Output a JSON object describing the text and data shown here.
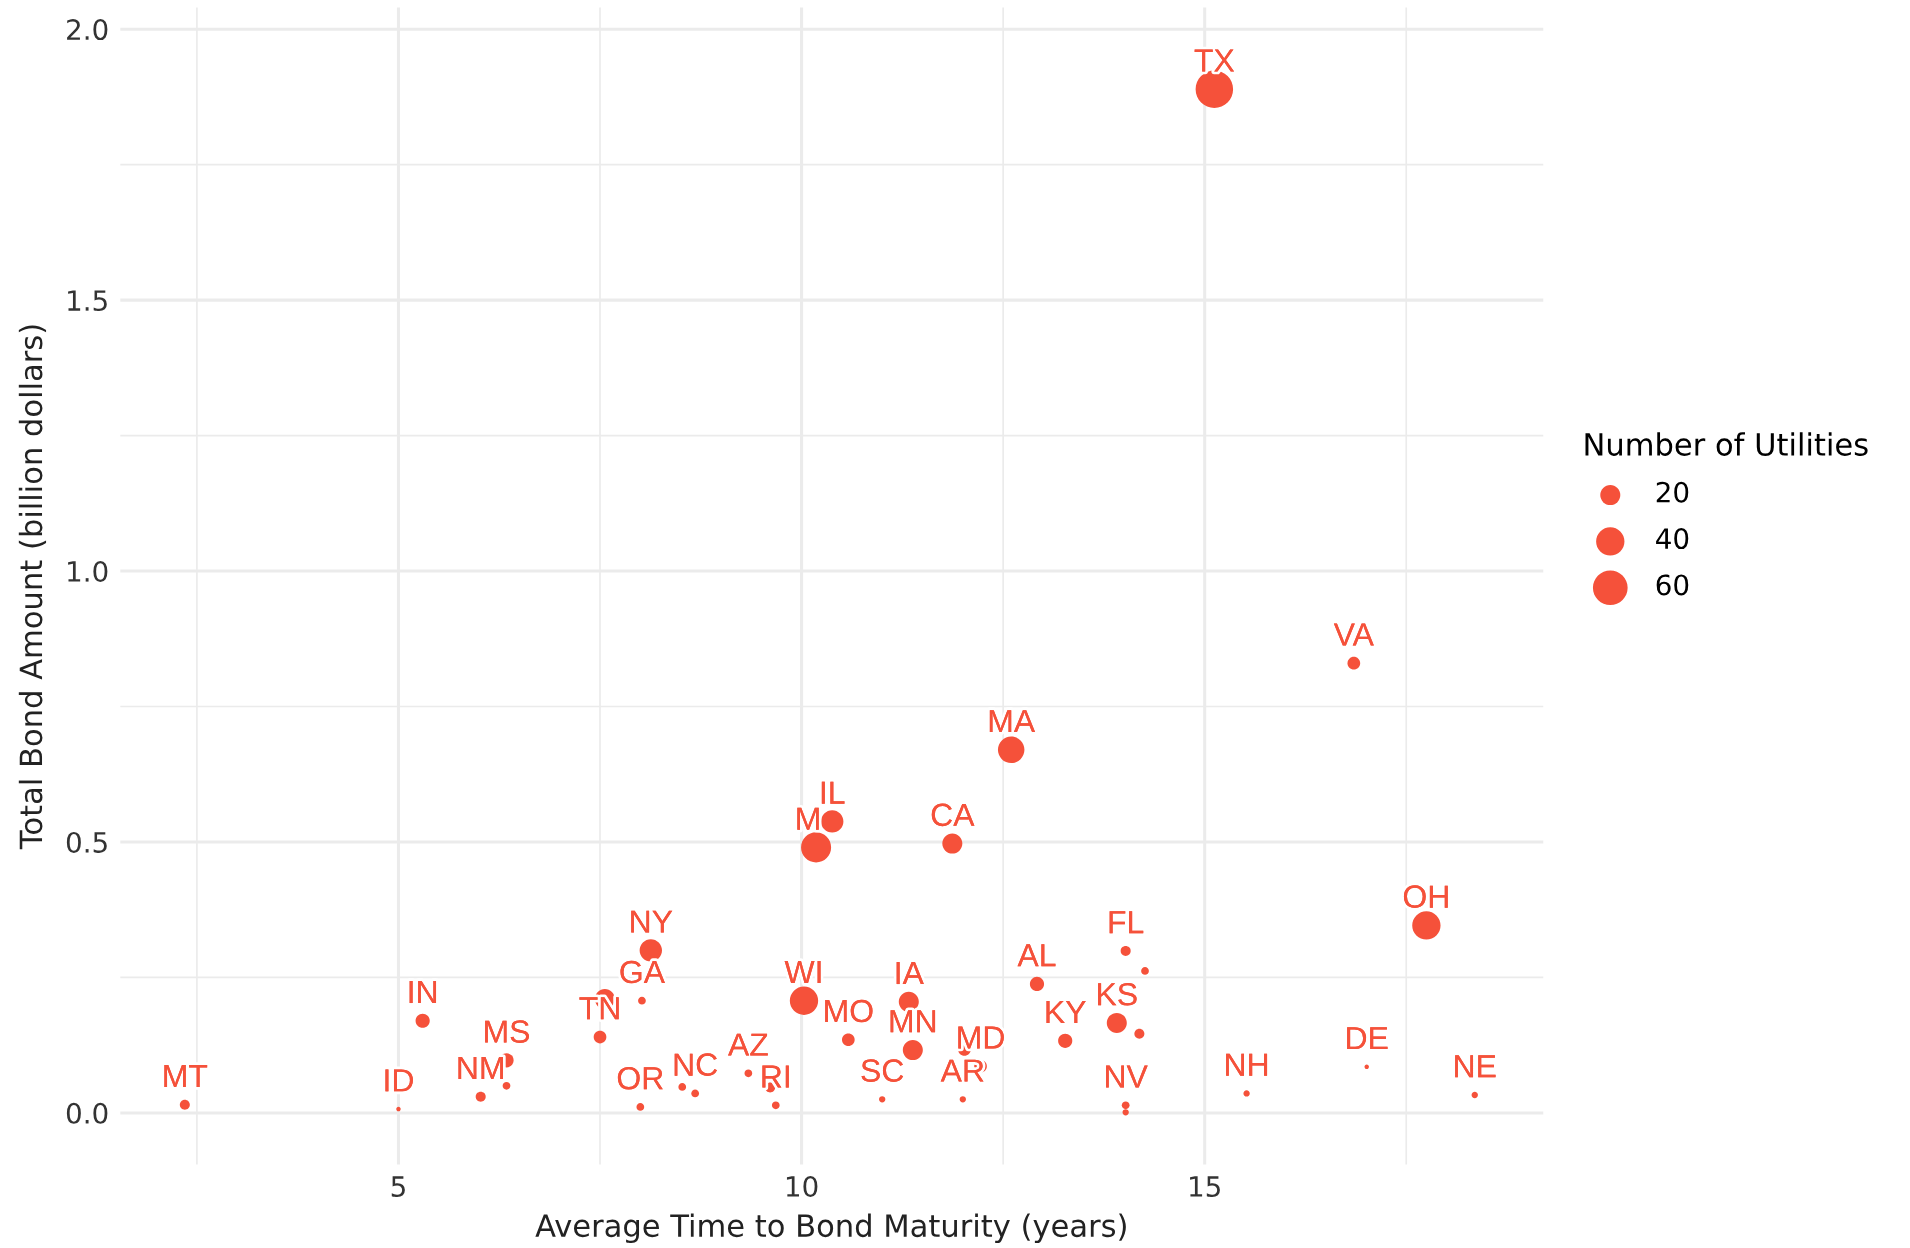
{
  "chart_data": {
    "type": "bubble",
    "xlabel": "Average Time to Bond Maturity (years)",
    "ylabel": "Total Bond Amount (billion dollars)",
    "legend_title": "Number of Utilities",
    "grid": true,
    "marker": "circle",
    "color": "#f5513a",
    "xlim": [
      1.55,
      19.2
    ],
    "ylim": [
      -0.095,
      2.04
    ],
    "xticks": [
      {
        "value": 2.5,
        "label": null
      },
      5,
      {
        "value": 7.5,
        "label": null
      },
      10,
      {
        "value": 12.5,
        "label": null
      },
      15,
      {
        "value": 17.5,
        "label": null
      }
    ],
    "yticks": [
      {
        "value": 0,
        "label": "0.0"
      },
      {
        "value": 0.25,
        "label": null
      },
      0.5,
      {
        "value": 0.75,
        "label": null
      },
      {
        "value": 1,
        "label": "1.0"
      },
      {
        "value": 1.25,
        "label": null
      },
      1.5,
      {
        "value": 1.75,
        "label": null
      },
      {
        "value": 2,
        "label": "2.0"
      }
    ],
    "size_legend": [
      20,
      40,
      60
    ],
    "x": [
      2.35,
      5.0,
      5.3,
      6.02,
      6.34,
      6.34,
      7.56,
      7.5,
      8.02,
      8.13,
      8.0,
      8.52,
      8.68,
      9.34,
      9.61,
      9.68,
      10.03,
      10.18,
      10.38,
      10.58,
      11.33,
      11.38,
      11.0,
      12.0,
      12.02,
      12.22,
      11.87,
      12.6,
      12.92,
      13.27,
      13.91,
      14.19,
      14.02,
      14.26,
      14.02,
      14.02,
      15.52,
      17.01,
      18.35,
      17.75,
      16.85,
      15.12
    ],
    "values": [
      0.015,
      0.007,
      0.17,
      0.03,
      0.097,
      0.05,
      0.21,
      0.14,
      0.207,
      0.3,
      0.011,
      0.048,
      0.036,
      0.073,
      0.047,
      0.014,
      0.207,
      0.49,
      0.538,
      0.135,
      0.205,
      0.116,
      0.025,
      0.025,
      0.117,
      0.086,
      0.497,
      0.67,
      0.238,
      0.133,
      0.166,
      0.146,
      0.299,
      0.262,
      0.014,
      0.001,
      0.036,
      0.085,
      0.033,
      0.346,
      0.83,
      1.889
    ],
    "sizes": [
      5,
      1,
      10,
      5,
      10,
      3,
      20,
      8,
      3,
      25,
      3,
      3,
      3,
      3,
      5,
      3,
      40,
      45,
      25,
      8,
      20,
      20,
      2,
      2,
      8,
      8,
      20,
      35,
      10,
      10,
      20,
      5,
      5,
      3,
      3,
      2,
      2,
      1,
      2,
      40,
      8,
      70
    ],
    "annotations": [
      {
        "text": "MT",
        "x": 2.35,
        "y": 0.015
      },
      {
        "text": "ID",
        "x": 5.0,
        "y": 0.007
      },
      {
        "text": "IN",
        "x": 5.3,
        "y": 0.17
      },
      {
        "text": "NM",
        "x": 6.02,
        "y": 0.03
      },
      {
        "text": "MS",
        "x": 6.34,
        "y": 0.097
      },
      {
        "text": "TN",
        "x": 7.5,
        "y": 0.14
      },
      {
        "text": "GA",
        "x": 8.02,
        "y": 0.207
      },
      {
        "text": "NY",
        "x": 8.13,
        "y": 0.3
      },
      {
        "text": "OR",
        "x": 8.0,
        "y": 0.011
      },
      {
        "text": "NC",
        "x": 8.68,
        "y": 0.036
      },
      {
        "text": "AZ",
        "x": 9.34,
        "y": 0.073
      },
      {
        "text": "RI",
        "x": 9.68,
        "y": 0.014
      },
      {
        "text": "WI",
        "x": 10.03,
        "y": 0.207
      },
      {
        "text": "M",
        "x": 10.08,
        "y": 0.49
      },
      {
        "text": "IL",
        "x": 10.38,
        "y": 0.538
      },
      {
        "text": "MO",
        "x": 10.58,
        "y": 0.135
      },
      {
        "text": "IA",
        "x": 11.33,
        "y": 0.205
      },
      {
        "text": "MN",
        "x": 11.38,
        "y": 0.116
      },
      {
        "text": "SC",
        "x": 11.0,
        "y": 0.025
      },
      {
        "text": "AR",
        "x": 12.0,
        "y": 0.025
      },
      {
        "text": "MD",
        "x": 12.22,
        "y": 0.086
      },
      {
        "text": "CA",
        "x": 11.87,
        "y": 0.497
      },
      {
        "text": "MA",
        "x": 12.6,
        "y": 0.67
      },
      {
        "text": "AL",
        "x": 12.92,
        "y": 0.238
      },
      {
        "text": "KY",
        "x": 13.27,
        "y": 0.133
      },
      {
        "text": "KS",
        "x": 13.91,
        "y": 0.166
      },
      {
        "text": "FL",
        "x": 14.02,
        "y": 0.299
      },
      {
        "text": "NV",
        "x": 14.02,
        "y": 0.014
      },
      {
        "text": "NH",
        "x": 15.52,
        "y": 0.036
      },
      {
        "text": "DE",
        "x": 17.01,
        "y": 0.085
      },
      {
        "text": "NE",
        "x": 18.35,
        "y": 0.033
      },
      {
        "text": "OH",
        "x": 17.75,
        "y": 0.346
      },
      {
        "text": "VA",
        "x": 16.85,
        "y": 0.83
      },
      {
        "text": "TX",
        "x": 15.12,
        "y": 1.889
      }
    ]
  }
}
